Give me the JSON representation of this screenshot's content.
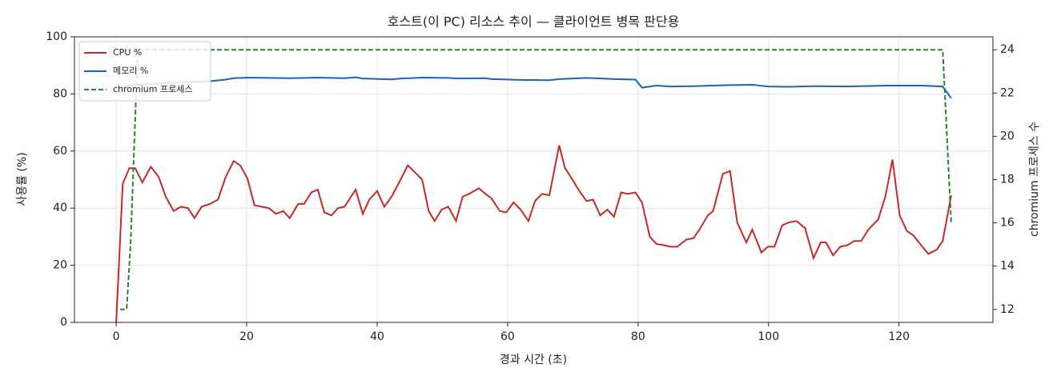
{
  "chart_data": {
    "type": "line",
    "title": "호스트(이 PC) 리소스 추이 — 클라이언트 병목 판단용",
    "xlabel": "경과 시간 (초)",
    "ylabel": "사용률 (%)",
    "y2label": "chromium 프로세스 수",
    "xlim": [
      -6.4,
      134.4
    ],
    "xticks": [
      0,
      20,
      40,
      60,
      80,
      100,
      120
    ],
    "ylim": [
      0,
      100
    ],
    "yticks": [
      0,
      20,
      40,
      60,
      80,
      100
    ],
    "y2lim": [
      11.4,
      24.6
    ],
    "y2ticks": [
      12,
      14,
      16,
      18,
      20,
      22,
      24
    ],
    "grid": true,
    "legend": "upper left",
    "series": [
      {
        "name": "CPU %",
        "color": "#c62828",
        "linestyle": "solid",
        "x": [
          0,
          1.0,
          2.0,
          2.9,
          4.0,
          5.3,
          6.5,
          7.6,
          8.8,
          9.9,
          11.0,
          12.0,
          13.1,
          14.4,
          15.6,
          16.8,
          18.0,
          19.0,
          20.1,
          21.2,
          22.3,
          23.4,
          24.5,
          25.6,
          26.6,
          27.9,
          28.8,
          29.9,
          30.9,
          31.9,
          33.0,
          34.0,
          35.0,
          36.7,
          37.8,
          38.8,
          40.0,
          41.1,
          42.2,
          43.6,
          44.7,
          45.8,
          46.9,
          47.9,
          48.8,
          49.9,
          50.9,
          52.1,
          53.1,
          54.1,
          55.6,
          56.6,
          57.5,
          58.8,
          59.8,
          60.9,
          62.0,
          63.2,
          64.2,
          65.3,
          66.4,
          67.9,
          68.8,
          69.8,
          71.0,
          72.1,
          73.1,
          74.2,
          75.3,
          76.3,
          77.4,
          78.4,
          79.6,
          80.6,
          81.8,
          82.8,
          84.0,
          85.0,
          86.0,
          87.4,
          88.5,
          89.4,
          90.7,
          91.5,
          93.0,
          94.1,
          95.2,
          96.6,
          97.5,
          98.9,
          99.9,
          100.9,
          102.1,
          103.1,
          104.3,
          105.6,
          106.9,
          108.0,
          108.8,
          109.9,
          111.0,
          112.1,
          113.1,
          114.2,
          115.3,
          116.8,
          117.9,
          119.0,
          120.1,
          121.2,
          122.2,
          123.4,
          124.5,
          125.8,
          126.7,
          128.0
        ],
        "values": [
          0,
          48.5,
          54,
          54,
          49,
          54.5,
          51,
          44,
          39,
          40.5,
          40,
          36.5,
          40.5,
          41.5,
          43,
          51,
          56.5,
          55,
          50.5,
          41,
          40.5,
          40,
          38,
          39,
          36.5,
          41.5,
          41.5,
          45.5,
          46.5,
          38.5,
          37.5,
          40,
          40.5,
          46.5,
          38,
          43,
          46,
          40.5,
          44,
          50,
          55,
          52.5,
          50,
          39,
          35.5,
          39.5,
          40.5,
          35.5,
          44,
          45,
          47,
          45,
          43.5,
          39,
          38.5,
          42,
          39.5,
          35.5,
          42.5,
          45,
          44.5,
          62,
          54,
          50.5,
          46,
          42.5,
          43,
          37.5,
          39.5,
          37,
          45.5,
          45,
          45.5,
          42,
          30,
          27.5,
          27,
          26.5,
          26.5,
          29,
          29.5,
          32.5,
          37.5,
          39,
          52,
          53,
          35,
          28,
          32.5,
          24.5,
          26.5,
          26.5,
          34,
          35,
          35.5,
          33,
          22.5,
          28,
          28,
          23.5,
          26.5,
          27,
          28.5,
          28.5,
          32.5,
          36,
          44,
          57,
          37.5,
          32,
          30.5,
          27,
          24,
          25.5,
          28.5,
          44.5
        ]
      },
      {
        "name": "메모리 %",
        "color": "#1565c0",
        "linestyle": "solid",
        "x": [
          1.0,
          2.0,
          5.3,
          9.9,
          14.5,
          16.8,
          18.0,
          20.1,
          23.4,
          26.6,
          30.9,
          35.0,
          36.7,
          37.8,
          42.2,
          43.6,
          46.9,
          50.9,
          52.1,
          56.6,
          57.5,
          62.0,
          66.4,
          67.9,
          72.1,
          76.3,
          79.6,
          80.6,
          82.8,
          85.0,
          88.5,
          94.1,
          97.5,
          99.9,
          103.1,
          106.9,
          112.1,
          117.9,
          123.4,
          126.7,
          128.0
        ],
        "values": [
          82.2,
          83,
          83.5,
          84,
          84.5,
          85,
          85.5,
          85.7,
          85.6,
          85.5,
          85.7,
          85.5,
          85.8,
          85.4,
          85.1,
          85.4,
          85.7,
          85.6,
          85.4,
          85.5,
          85.2,
          84.9,
          84.8,
          85.2,
          85.6,
          85.2,
          85,
          82.2,
          82.9,
          82.6,
          82.7,
          83.1,
          83.2,
          82.6,
          82.5,
          82.7,
          82.6,
          82.9,
          82.9,
          82.6,
          78.5
        ]
      },
      {
        "name": "chromium 프로세스",
        "color": "#2e7d32",
        "linestyle": "dashed",
        "axis": "y2",
        "x": [
          0.6,
          1.6,
          2.2,
          3.3,
          126.7,
          128.0
        ],
        "values": [
          12,
          12,
          15,
          24,
          24,
          16
        ]
      }
    ]
  }
}
